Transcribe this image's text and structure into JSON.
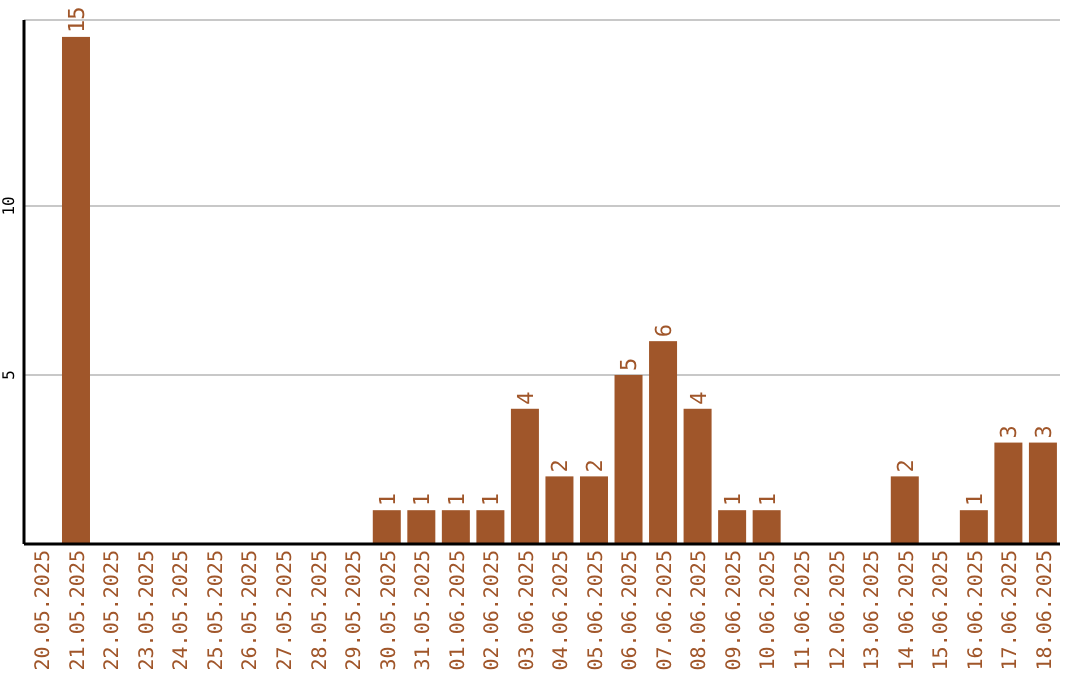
{
  "chart_data": {
    "type": "bar",
    "categories": [
      "20.05.2025",
      "21.05.2025",
      "22.05.2025",
      "23.05.2025",
      "24.05.2025",
      "25.05.2025",
      "26.05.2025",
      "27.05.2025",
      "28.05.2025",
      "29.05.2025",
      "30.05.2025",
      "31.05.2025",
      "01.06.2025",
      "02.06.2025",
      "03.06.2025",
      "04.06.2025",
      "05.06.2025",
      "06.06.2025",
      "07.06.2025",
      "08.06.2025",
      "09.06.2025",
      "10.06.2025",
      "11.06.2025",
      "12.06.2025",
      "13.06.2025",
      "14.06.2025",
      "15.06.2025",
      "16.06.2025",
      "17.06.2025",
      "18.06.2025"
    ],
    "values": [
      0,
      15,
      0,
      0,
      0,
      0,
      0,
      0,
      0,
      0,
      1,
      1,
      1,
      1,
      4,
      2,
      2,
      5,
      6,
      4,
      1,
      1,
      0,
      0,
      0,
      2,
      0,
      1,
      3,
      3
    ],
    "value_labels": [
      null,
      "15",
      null,
      null,
      null,
      null,
      null,
      null,
      null,
      null,
      "1",
      "1",
      "1",
      "1",
      "4",
      "2",
      "2",
      "5",
      "6",
      "4",
      "1",
      "1",
      null,
      null,
      null,
      "2",
      null,
      "1",
      "3",
      "3"
    ],
    "color": "#a0562a",
    "ylim": [
      0,
      15.5
    ],
    "yticks": [
      5,
      10
    ],
    "grid": "y"
  }
}
